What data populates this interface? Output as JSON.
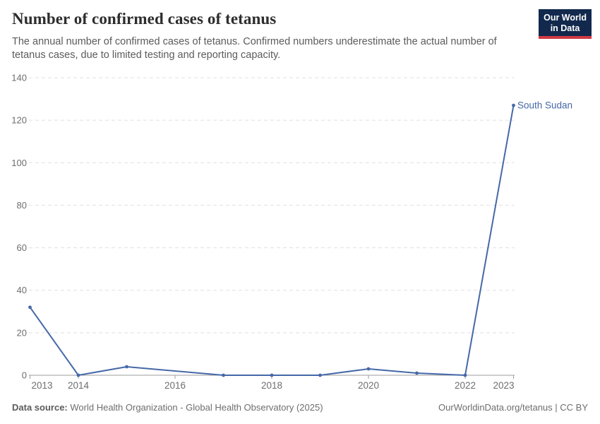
{
  "chart_data": {
    "type": "line",
    "title": "Number of confirmed cases of tetanus",
    "subtitle": "The annual number of confirmed cases of tetanus. Confirmed numbers underestimate the actual number of tetanus cases, due to limited testing and reporting capacity.",
    "xlabel": "",
    "ylabel": "",
    "xlim": [
      2013,
      2023
    ],
    "ylim": [
      0,
      140
    ],
    "y_ticks": [
      0,
      20,
      40,
      60,
      80,
      100,
      120,
      140
    ],
    "x_ticks": [
      2013,
      2014,
      2016,
      2018,
      2020,
      2022,
      2023
    ],
    "grid": true,
    "legend_position": "end-of-line label",
    "series": [
      {
        "name": "South Sudan",
        "color": "#4668a8",
        "x": [
          2013,
          2014,
          2015,
          2017,
          2018,
          2019,
          2020,
          2021,
          2022,
          2023
        ],
        "values": [
          32,
          0,
          4,
          0,
          0,
          0,
          3,
          1,
          0,
          127
        ]
      }
    ]
  },
  "logo": {
    "line1": "Our World",
    "line2": "in Data",
    "bg_color": "#12294d",
    "accent_color": "#d03a43"
  },
  "footer": {
    "source_label": "Data source:",
    "source_text": "World Health Organization - Global Health Observatory (2025)",
    "attribution": "OurWorldinData.org/tetanus | CC BY"
  },
  "colors": {
    "line": "#4668a8",
    "gridline": "#e0e0e0",
    "axis": "#9e9e9e",
    "axis_text": "#6e6e6e",
    "title_text": "#2d2d2d",
    "subtitle_text": "#5b5b5b"
  }
}
